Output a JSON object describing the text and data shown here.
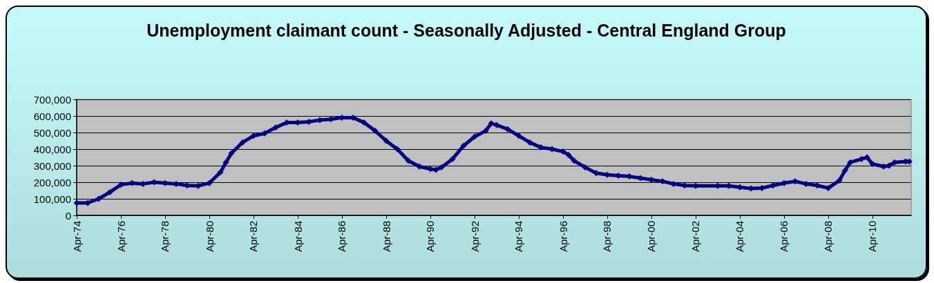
{
  "chart_data": {
    "type": "line",
    "title": "Unemployment claimant count - Seasonally Adjusted - Central England Group",
    "x": [
      "1974-04",
      "1974-10",
      "1975-04",
      "1975-10",
      "1976-04",
      "1976-10",
      "1977-04",
      "1977-10",
      "1978-04",
      "1978-10",
      "1979-04",
      "1979-10",
      "1980-04",
      "1980-10",
      "1981-01",
      "1981-04",
      "1981-10",
      "1982-04",
      "1982-10",
      "1983-04",
      "1983-10",
      "1984-04",
      "1984-10",
      "1985-04",
      "1985-10",
      "1986-04",
      "1986-10",
      "1987-04",
      "1987-10",
      "1988-04",
      "1988-10",
      "1989-04",
      "1989-10",
      "1990-04",
      "1990-07",
      "1990-10",
      "1991-04",
      "1991-10",
      "1992-04",
      "1992-10",
      "1993-01",
      "1993-04",
      "1993-10",
      "1994-04",
      "1994-10",
      "1995-04",
      "1995-10",
      "1996-04",
      "1996-07",
      "1996-10",
      "1997-04",
      "1997-10",
      "1998-04",
      "1998-10",
      "1999-04",
      "1999-10",
      "2000-04",
      "2000-10",
      "2001-04",
      "2001-10",
      "2002-04",
      "2003-04",
      "2003-10",
      "2004-04",
      "2004-10",
      "2005-04",
      "2005-10",
      "2006-04",
      "2006-10",
      "2007-04",
      "2007-10",
      "2008-04",
      "2008-10",
      "2009-01",
      "2009-04",
      "2009-10",
      "2010-01",
      "2010-04",
      "2010-10",
      "2011-01",
      "2011-04",
      "2011-10",
      "2011-12"
    ],
    "series": [
      {
        "color": "#000080",
        "values": [
          75000,
          75000,
          100000,
          140000,
          185000,
          195000,
          190000,
          200000,
          195000,
          190000,
          180000,
          178000,
          195000,
          260000,
          320000,
          375000,
          440000,
          480000,
          495000,
          530000,
          560000,
          560000,
          565000,
          575000,
          580000,
          590000,
          590000,
          560000,
          510000,
          450000,
          400000,
          330000,
          295000,
          280000,
          275000,
          290000,
          340000,
          420000,
          475000,
          510000,
          555000,
          545000,
          520000,
          480000,
          440000,
          410000,
          400000,
          385000,
          365000,
          330000,
          290000,
          255000,
          245000,
          240000,
          235000,
          225000,
          215000,
          205000,
          190000,
          180000,
          178000,
          178000,
          178000,
          170000,
          162000,
          165000,
          180000,
          195000,
          205000,
          190000,
          180000,
          165000,
          210000,
          270000,
          320000,
          340000,
          350000,
          310000,
          295000,
          300000,
          320000,
          325000,
          325000
        ]
      }
    ],
    "xlim": [
      "1974-04",
      "2012-01"
    ],
    "xticks": [
      {
        "value": "1974-04",
        "label": "Apr-74"
      },
      {
        "value": "1976-04",
        "label": "Apr-76"
      },
      {
        "value": "1978-04",
        "label": "Apr-78"
      },
      {
        "value": "1980-04",
        "label": "Apr-80"
      },
      {
        "value": "1982-04",
        "label": "Apr-82"
      },
      {
        "value": "1984-04",
        "label": "Apr-84"
      },
      {
        "value": "1986-04",
        "label": "Apr-86"
      },
      {
        "value": "1988-04",
        "label": "Apr-88"
      },
      {
        "value": "1990-04",
        "label": "Apr-90"
      },
      {
        "value": "1992-04",
        "label": "Apr-92"
      },
      {
        "value": "1994-04",
        "label": "Apr-94"
      },
      {
        "value": "1996-04",
        "label": "Apr-96"
      },
      {
        "value": "1998-04",
        "label": "Apr-98"
      },
      {
        "value": "2000-04",
        "label": "Apr-00"
      },
      {
        "value": "2002-04",
        "label": "Apr-02"
      },
      {
        "value": "2004-04",
        "label": "Apr-04"
      },
      {
        "value": "2006-04",
        "label": "Apr-06"
      },
      {
        "value": "2008-04",
        "label": "Apr-08"
      },
      {
        "value": "2010-04",
        "label": "Apr-10"
      }
    ],
    "ylim": [
      0,
      700000
    ],
    "yticks": [
      {
        "value": 0,
        "label": "0"
      },
      {
        "value": 100000,
        "label": "100,000"
      },
      {
        "value": 200000,
        "label": "200,000"
      },
      {
        "value": 300000,
        "label": "300,000"
      },
      {
        "value": 400000,
        "label": "400,000"
      },
      {
        "value": 500000,
        "label": "500,000"
      },
      {
        "value": 600000,
        "label": "600,000"
      },
      {
        "value": 700000,
        "label": "700,000"
      }
    ],
    "grid": "y",
    "marker": "diamond",
    "line_style": "solid"
  }
}
